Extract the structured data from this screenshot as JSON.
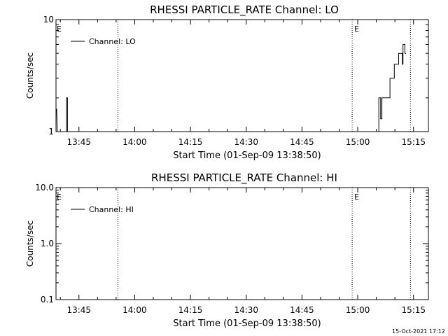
{
  "footer": {
    "date_stamp": "15-Oct-2021 17:12"
  },
  "colors": {
    "line": "#000000",
    "background": "#ffffff"
  },
  "chart_data": [
    {
      "type": "line",
      "title": "RHESSI PARTICLE_RATE Channel: LO",
      "xlabel": "Start Time (01-Sep-09 13:38:50)",
      "ylabel": "Counts/sec",
      "x_range": [
        "13:38:50",
        "15:19:00"
      ],
      "ylim": [
        1,
        10
      ],
      "yscale": "log",
      "xtick_labels": [
        "13:45",
        "14:00",
        "14:15",
        "14:30",
        "14:45",
        "15:00",
        "15:15"
      ],
      "ytick_labels": [
        "1",
        "10"
      ],
      "legend": {
        "entries": [
          "Channel: LO"
        ],
        "position": "top-left"
      },
      "event_marker_labels": [
        "E",
        "E"
      ],
      "vertical_dotted_lines": [
        "13:55:30",
        "14:58:30",
        "15:14:10"
      ],
      "series": [
        {
          "name": "Channel: LO",
          "points": [
            [
              "13:39:00",
              1.6
            ],
            [
              "13:39:10",
              1.0
            ],
            [
              "13:41:40",
              1.0
            ],
            [
              "13:41:40",
              2.0
            ],
            [
              "13:41:55",
              2.0
            ],
            [
              "13:41:55",
              1.0
            ],
            [
              "15:05:40",
              1.0
            ],
            [
              "15:05:40",
              2.0
            ],
            [
              "15:06:10",
              2.0
            ],
            [
              "15:06:10",
              1.3
            ],
            [
              "15:06:30",
              1.3
            ],
            [
              "15:06:30",
              2.0
            ],
            [
              "15:08:40",
              2.0
            ],
            [
              "15:08:40",
              3.0
            ],
            [
              "15:09:50",
              3.0
            ],
            [
              "15:09:50",
              4.0
            ],
            [
              "15:11:00",
              4.0
            ],
            [
              "15:11:00",
              5.0
            ],
            [
              "15:12:00",
              5.0
            ],
            [
              "15:12:00",
              4.0
            ],
            [
              "15:12:10",
              4.0
            ],
            [
              "15:12:10",
              6.0
            ],
            [
              "15:12:40",
              6.0
            ],
            [
              "15:12:40",
              5.0
            ],
            [
              "15:13:00",
              5.0
            ]
          ]
        }
      ]
    },
    {
      "type": "line",
      "title": "RHESSI PARTICLE_RATE Channel: HI",
      "xlabel": "Start Time (01-Sep-09 13:38:50)",
      "ylabel": "Counts/sec",
      "x_range": [
        "13:38:50",
        "15:19:00"
      ],
      "ylim": [
        0.1,
        10
      ],
      "yscale": "log",
      "xtick_labels": [
        "13:45",
        "14:00",
        "14:15",
        "14:30",
        "14:45",
        "15:00",
        "15:15"
      ],
      "ytick_labels": [
        "0.1",
        "1.0",
        "10.0"
      ],
      "legend": {
        "entries": [
          "Channel: HI"
        ],
        "position": "top-left"
      },
      "event_marker_labels": [
        "E",
        "E"
      ],
      "vertical_dotted_lines": [
        "13:55:30",
        "14:58:30",
        "15:14:10"
      ],
      "series": [
        {
          "name": "Channel: HI",
          "points": []
        }
      ]
    }
  ]
}
